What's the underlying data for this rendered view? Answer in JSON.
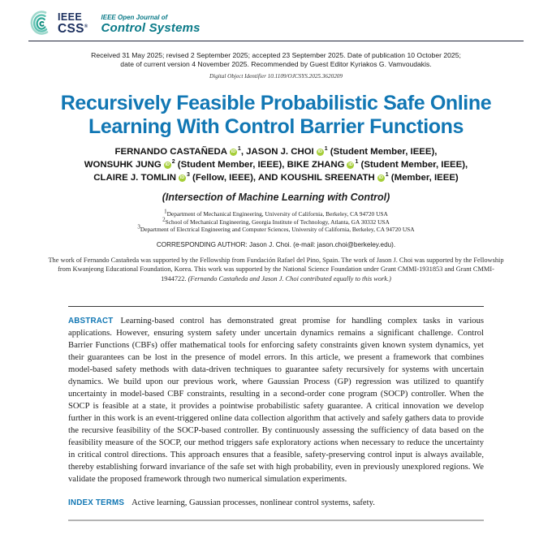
{
  "header": {
    "ieee": "IEEE",
    "css": "CSS",
    "reg": "®",
    "journal_prefix": "IEEE Open Journal of",
    "journal_name": "Control Systems"
  },
  "meta": {
    "received_lines": [
      "Received 31 May 2025; revised 2 September 2025; accepted 23 September 2025. Date of publication 10 October 2025;",
      "date of current version 4 November 2025. Recommended by Guest Editor Kyriakos G. Vamvoudakis."
    ],
    "doi": "Digital Object Identifier 10.1109/OJCSYS.2025.3620209"
  },
  "title_lines": [
    "Recursively Feasible Probabilistic Safe Online",
    "Learning With Control Barrier Functions"
  ],
  "authors": {
    "orcid_label": "iD",
    "lines": [
      [
        {
          "name": "FERNANDO CASTAÑEDA",
          "orcid": true,
          "sup": "1",
          "rest": ", "
        },
        {
          "name": "JASON J. CHOI",
          "orcid": true,
          "sup": "1",
          "rest": " (Student Member, IEEE),"
        }
      ],
      [
        {
          "name": "WONSUHK JUNG",
          "orcid": true,
          "sup": "2",
          "rest": " (Student Member, IEEE), "
        },
        {
          "name": "BIKE ZHANG",
          "orcid": true,
          "sup": "1",
          "rest": " (Student Member, IEEE),"
        }
      ],
      [
        {
          "name": "CLAIRE J. TOMLIN",
          "orcid": true,
          "sup": "3",
          "rest": " (Fellow, IEEE), AND "
        },
        {
          "name": "KOUSHIL SREENATH",
          "orcid": true,
          "sup": "1",
          "rest": " (Member, IEEE)"
        }
      ]
    ]
  },
  "subtitle": "(Intersection of Machine Learning with Control)",
  "affiliations": [
    {
      "sup": "1",
      "text": "Department of Mechanical Engineering, University of California, Berkeley, CA 94720 USA"
    },
    {
      "sup": "2",
      "text": "School of Mechanical Engineering, Georgia Institute of Technology, Atlanta, GA 30332 USA"
    },
    {
      "sup": "3",
      "text": "Department of Electrical Engineering and Computer Sciences, University of California, Berkeley, CA 94720 USA"
    }
  ],
  "corresponding": {
    "prefix": "CORRESPONDING AUTHOR: Jason J. Choi. (e-mail: ",
    "email": "jason.choi@berkeley.edu",
    "suffix": ")."
  },
  "funding": {
    "text": "The work of Fernando Castañeda was supported by the Fellowship from Fundación Rafael del Pino, Spain. The work of Jason J. Choi was supported by the Fellowship from Kwanjeong Educational Foundation, Korea. This work was supported by the National Science Foundation under Grant CMMI-1931853 and Grant CMMI-1944722. ",
    "note": "(Fernando Castañeda and Jason J. Choi contributed equally to this work.)"
  },
  "abstract": {
    "label": "ABSTRACT",
    "text": "Learning-based control has demonstrated great promise for handling complex tasks in various applications. However, ensuring system safety under uncertain dynamics remains a significant challenge. Control Barrier Functions (CBFs) offer mathematical tools for enforcing safety constraints given known system dynamics, yet their guarantees can be lost in the presence of model errors. In this article, we present a framework that combines model-based safety methods with data-driven techniques to guarantee safety recursively for systems with uncertain dynamics. We build upon our previous work, where Gaussian Process (GP) regression was utilized to quantify uncertainty in model-based CBF constraints, resulting in a second-order cone program (SOCP) controller. When the SOCP is feasible at a state, it provides a pointwise probabilistic safety guarantee. A critical innovation we develop further in this work is an event-triggered online data collection algorithm that actively and safely gathers data to provide the recursive feasibility of the SOCP-based controller. By continuously assessing the sufficiency of data based on the feasibility measure of the SOCP, our method triggers safe exploratory actions when necessary to reduce the uncertainty in critical control directions. This approach ensures that a feasible, safety-preserving control input is always available, thereby establishing forward invariance of the safe set with high probability, even in previously unexplored regions. We validate the proposed framework through two numerical simulation experiments."
  },
  "index_terms": {
    "label": "INDEX TERMS",
    "text": "Active learning, Gaussian processes, nonlinear control systems, safety."
  },
  "colors": {
    "title_blue": "#1177b4",
    "logo_navy": "#1b2f5e",
    "logo_teal": "#0a7a88",
    "orcid_green": "#a6ce39"
  }
}
